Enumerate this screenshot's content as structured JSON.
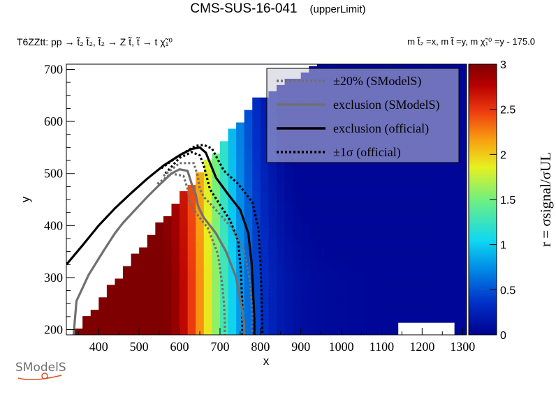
{
  "header": {
    "title": "CMS-SUS-16-041",
    "subtitle": "(upperLimit)",
    "process": "T6ZZtt: pp → t̃₂ t̃₂, t̃₂ → Z t̃, t̃ → t χ̃₁⁰",
    "masses": "m t̃₂ =x, m t̃ =y, m χ̃₁⁰ =y - 175.0"
  },
  "logo": {
    "text": "SModelS"
  },
  "chart_data": {
    "type": "heatmap",
    "title": "CMS-SUS-16-041",
    "xlabel": "x",
    "ylabel": "y",
    "zlabel": "r = σsignal/σUL",
    "xlim": [
      320,
      1310
    ],
    "ylim": [
      190,
      710
    ],
    "zlim": [
      0,
      3
    ],
    "x_ticks": [
      400,
      500,
      600,
      700,
      800,
      900,
      1000,
      1100,
      1200,
      1300
    ],
    "y_ticks": [
      200,
      300,
      400,
      500,
      600,
      700
    ],
    "z_ticks": [
      0,
      0.5,
      1,
      1.5,
      2,
      2.5,
      3
    ],
    "legend": {
      "placement": "top-right",
      "entries": [
        {
          "label": "±20% (SModelS)",
          "style": "dotted",
          "color": "#707070"
        },
        {
          "label": "exclusion (SModelS)",
          "style": "solid",
          "color": "#707070"
        },
        {
          "label": "exclusion (official)",
          "style": "solid",
          "color": "#000000"
        },
        {
          "label": "±1σ (official)",
          "style": "dotted",
          "color": "#000000"
        }
      ]
    },
    "series": [
      {
        "name": "exclusion (official)",
        "x": [
          320,
          360,
          400,
          440,
          480,
          520,
          560,
          600,
          630,
          650,
          665,
          690,
          720,
          750,
          770,
          778,
          782,
          785,
          785
        ],
        "y": [
          325,
          362,
          400,
          433,
          462,
          490,
          515,
          535,
          547,
          550,
          540,
          492,
          460,
          430,
          385,
          330,
          270,
          220,
          190
        ]
      },
      {
        "name": "+1σ (official)",
        "x": [
          555,
          600,
          640,
          660,
          680,
          710,
          745,
          780,
          795,
          800,
          803,
          805
        ],
        "y": [
          510,
          535,
          553,
          555,
          548,
          505,
          480,
          445,
          395,
          330,
          260,
          190
        ]
      },
      {
        "name": "-1σ (official)",
        "x": [
          565,
          600,
          630,
          650,
          660,
          675,
          700,
          725,
          745,
          752,
          755,
          755
        ],
        "y": [
          500,
          530,
          541,
          535,
          515,
          470,
          440,
          410,
          370,
          310,
          250,
          190
        ]
      },
      {
        "name": "exclusion (SModelS)",
        "x": [
          338,
          345,
          360,
          375,
          395,
          415,
          440,
          460,
          490,
          520,
          550,
          580,
          600,
          620,
          630,
          640,
          645,
          650,
          660,
          690,
          715,
          740,
          752,
          760,
          760
        ],
        "y": [
          190,
          255,
          280,
          305,
          330,
          355,
          385,
          405,
          430,
          455,
          478,
          500,
          508,
          505,
          480,
          460,
          440,
          430,
          415,
          385,
          350,
          300,
          250,
          210,
          190
        ]
      },
      {
        "name": "+20% (SModelS)",
        "x": [
          560,
          600,
          635,
          645,
          650,
          660,
          690,
          730,
          760,
          775,
          780,
          780
        ],
        "y": [
          495,
          520,
          520,
          495,
          470,
          455,
          430,
          395,
          350,
          290,
          230,
          190
        ]
      },
      {
        "name": "-20% (SModelS)",
        "x": [
          545,
          580,
          610,
          620,
          625,
          640,
          670,
          695,
          705,
          710,
          712,
          712
        ],
        "y": [
          480,
          500,
          495,
          470,
          445,
          425,
          395,
          345,
          290,
          250,
          215,
          190
        ]
      }
    ]
  }
}
